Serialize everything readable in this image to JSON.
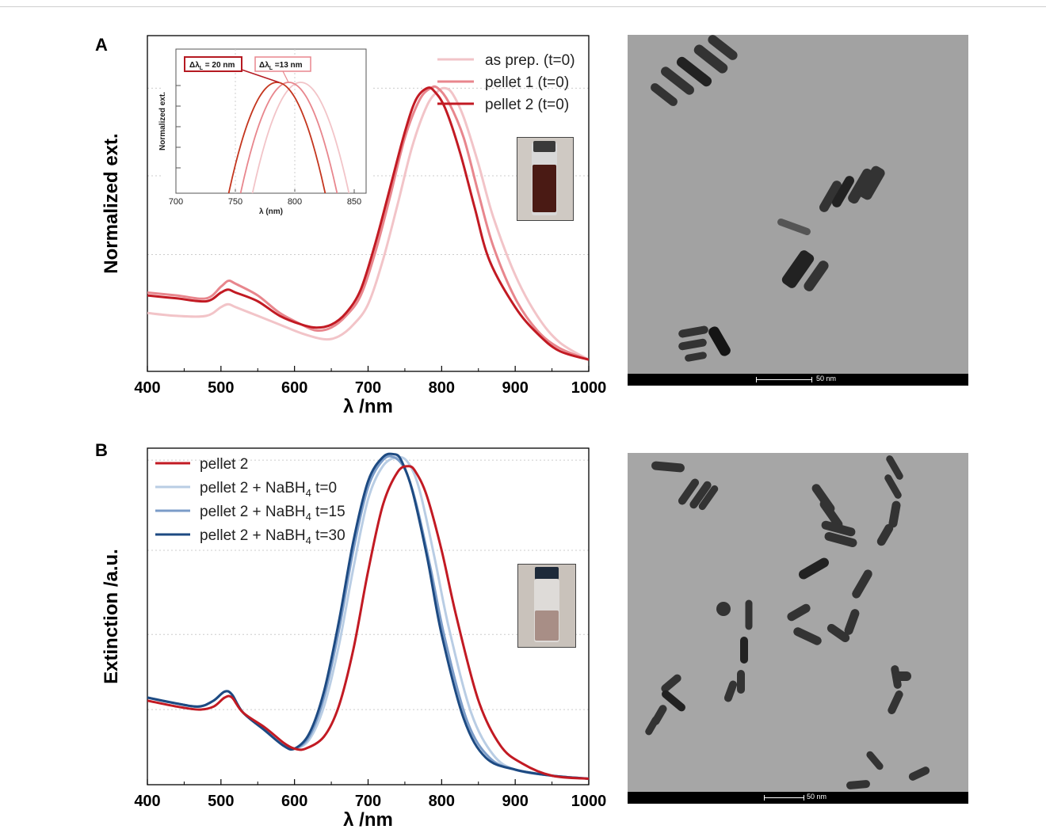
{
  "panels": {
    "a_label": "A",
    "b_label": "B"
  },
  "chart_data": [
    {
      "type": "line",
      "panel": "A",
      "xlabel": "λ /nm",
      "ylabel": "Normalized ext.",
      "xlim": [
        400,
        1000
      ],
      "ylim": [
        0.05,
        1.2
      ],
      "xticks": [
        400,
        500,
        600,
        700,
        800,
        900,
        1000
      ],
      "legend_position": "top-right",
      "series": [
        {
          "name": "as prep. (t=0)",
          "color": "#f2c4c8",
          "x": [
            400,
            440,
            480,
            500,
            510,
            520,
            550,
            580,
            610,
            640,
            660,
            680,
            700,
            720,
            740,
            760,
            780,
            795,
            805,
            815,
            830,
            850,
            870,
            900,
            930,
            960,
            1000
          ],
          "y": [
            0.25,
            0.24,
            0.24,
            0.27,
            0.28,
            0.27,
            0.24,
            0.21,
            0.18,
            0.16,
            0.17,
            0.21,
            0.28,
            0.43,
            0.62,
            0.82,
            0.96,
            1.01,
            1.02,
            1.0,
            0.92,
            0.76,
            0.58,
            0.38,
            0.24,
            0.15,
            0.09
          ]
        },
        {
          "name": "pellet 1 (t=0)",
          "color": "#e8868d",
          "x": [
            400,
            440,
            480,
            500,
            510,
            520,
            550,
            580,
            610,
            630,
            650,
            670,
            690,
            710,
            730,
            750,
            770,
            785,
            795,
            810,
            830,
            850,
            870,
            900,
            930,
            960,
            1000
          ],
          "y": [
            0.32,
            0.31,
            0.3,
            0.34,
            0.36,
            0.35,
            0.31,
            0.25,
            0.21,
            0.19,
            0.2,
            0.24,
            0.31,
            0.46,
            0.65,
            0.85,
            0.98,
            1.02,
            1.02,
            0.97,
            0.85,
            0.66,
            0.48,
            0.3,
            0.19,
            0.13,
            0.09
          ]
        },
        {
          "name": "pellet 2 (t=0)",
          "color": "#c21a23",
          "x": [
            400,
            440,
            480,
            500,
            510,
            520,
            550,
            580,
            610,
            630,
            650,
            670,
            690,
            710,
            730,
            750,
            765,
            780,
            790,
            805,
            825,
            845,
            865,
            900,
            930,
            960,
            1000
          ],
          "y": [
            0.31,
            0.3,
            0.29,
            0.32,
            0.33,
            0.32,
            0.29,
            0.24,
            0.21,
            0.2,
            0.21,
            0.25,
            0.33,
            0.49,
            0.68,
            0.87,
            0.98,
            1.02,
            1.01,
            0.95,
            0.8,
            0.61,
            0.43,
            0.27,
            0.18,
            0.12,
            0.09
          ]
        }
      ],
      "inset": {
        "xlabel": "λ (nm)",
        "ylabel": "Normalized ext.",
        "xlim": [
          700,
          860
        ],
        "xticks": [
          700,
          750,
          800,
          850
        ],
        "annotations": [
          "Δλ",
          "L",
          " = 20 nm",
          "Δλ",
          "L",
          " =13 nm"
        ]
      }
    },
    {
      "type": "line",
      "panel": "B",
      "xlabel": "λ /nm",
      "ylabel": "Extinction /a.u.",
      "xlim": [
        400,
        1000
      ],
      "ylim": [
        0,
        1.12
      ],
      "xticks": [
        400,
        500,
        600,
        700,
        800,
        900,
        1000
      ],
      "legend_position": "top-left",
      "series": [
        {
          "name": "pellet 2",
          "name_sub": "",
          "name_suffix": "",
          "color": "#c21a23",
          "x": [
            400,
            440,
            470,
            490,
            505,
            515,
            530,
            560,
            585,
            600,
            615,
            640,
            660,
            680,
            700,
            720,
            740,
            755,
            765,
            780,
            800,
            820,
            850,
            880,
            910,
            950,
            1000
          ],
          "y": [
            0.28,
            0.26,
            0.25,
            0.26,
            0.29,
            0.29,
            0.24,
            0.19,
            0.14,
            0.12,
            0.12,
            0.16,
            0.26,
            0.45,
            0.71,
            0.93,
            1.04,
            1.06,
            1.04,
            0.96,
            0.78,
            0.56,
            0.28,
            0.13,
            0.07,
            0.03,
            0.02
          ]
        },
        {
          "name": "pellet 2 + NaBH",
          "name_sub": "4",
          "name_suffix": "  t=0",
          "color": "#b9cde4",
          "x": [
            400,
            440,
            470,
            490,
            505,
            515,
            530,
            560,
            585,
            600,
            620,
            640,
            660,
            680,
            700,
            720,
            740,
            755,
            770,
            790,
            810,
            840,
            870,
            900,
            950,
            1000
          ],
          "y": [
            0.29,
            0.27,
            0.26,
            0.28,
            0.31,
            0.3,
            0.24,
            0.18,
            0.13,
            0.12,
            0.15,
            0.26,
            0.46,
            0.72,
            0.95,
            1.06,
            1.09,
            1.07,
            0.98,
            0.76,
            0.52,
            0.24,
            0.1,
            0.05,
            0.03,
            0.02
          ]
        },
        {
          "name": "pellet 2 + NaBH",
          "name_sub": "4",
          "name_suffix": "  t=15",
          "color": "#7b9cc8",
          "x": [
            400,
            440,
            470,
            490,
            505,
            515,
            530,
            560,
            585,
            600,
            620,
            640,
            660,
            680,
            700,
            720,
            735,
            750,
            765,
            785,
            805,
            835,
            865,
            900,
            950,
            1000
          ],
          "y": [
            0.29,
            0.27,
            0.26,
            0.28,
            0.31,
            0.3,
            0.24,
            0.18,
            0.13,
            0.12,
            0.16,
            0.29,
            0.51,
            0.78,
            0.99,
            1.08,
            1.09,
            1.05,
            0.94,
            0.72,
            0.48,
            0.21,
            0.09,
            0.05,
            0.03,
            0.02
          ]
        },
        {
          "name": "pellet 2 + NaBH",
          "name_sub": "4",
          "name_suffix": "  t=30",
          "color": "#1d4a82",
          "x": [
            400,
            440,
            470,
            490,
            505,
            515,
            530,
            560,
            585,
            600,
            620,
            640,
            660,
            680,
            700,
            720,
            735,
            745,
            760,
            780,
            800,
            830,
            860,
            900,
            950,
            1000
          ],
          "y": [
            0.29,
            0.27,
            0.26,
            0.28,
            0.31,
            0.3,
            0.24,
            0.18,
            0.13,
            0.12,
            0.17,
            0.31,
            0.54,
            0.81,
            1.01,
            1.09,
            1.1,
            1.08,
            0.98,
            0.76,
            0.5,
            0.22,
            0.09,
            0.05,
            0.03,
            0.02
          ]
        }
      ]
    }
  ],
  "tem_images": [
    {
      "scale_label": "50 nm"
    },
    {
      "scale_label": "50 nm"
    }
  ]
}
